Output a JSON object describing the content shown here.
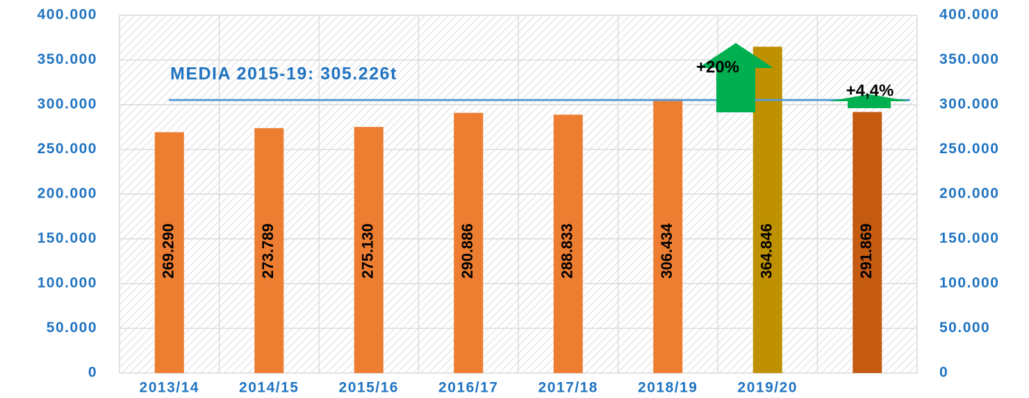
{
  "chart_data": {
    "type": "bar",
    "categories": [
      "2013/14",
      "2014/15",
      "2015/16",
      "2016/17",
      "2017/18",
      "2018/19",
      "2019/20",
      null
    ],
    "values": [
      269290,
      273789,
      275130,
      290886,
      288833,
      306434,
      364846,
      291869
    ],
    "value_labels": [
      "269.290",
      "273.789",
      "275.130",
      "290.886",
      "288.833",
      "306.434",
      "364.846",
      "291.869"
    ],
    "colors": [
      "#ed7d31",
      "#ed7d31",
      "#ed7d31",
      "#ed7d31",
      "#ed7d31",
      "#ed7d31",
      "#bf9000",
      "#c55a11"
    ],
    "ylim": [
      0,
      400000
    ],
    "yticks": [
      0,
      {
        "value": 50000,
        "label": "50.000"
      },
      {
        "value": 100000,
        "label": "100.000"
      },
      {
        "value": 150000,
        "label": "150.000"
      },
      {
        "value": 200000,
        "label": "200.000"
      },
      {
        "value": 250000,
        "label": "250.000"
      },
      {
        "value": 300000,
        "label": "300.000"
      },
      {
        "value": 350000,
        "label": "350.000"
      },
      {
        "value": 400000,
        "label": "400.000"
      }
    ],
    "y2lim": [
      0,
      400000
    ],
    "y2ticks": [
      0,
      {
        "value": 50000,
        "label": "50.000"
      },
      {
        "value": 100000,
        "label": "100.000"
      },
      {
        "value": 150000,
        "label": "150.000"
      },
      {
        "value": 200000,
        "label": "200.000"
      },
      {
        "value": 250000,
        "label": "250.000"
      },
      {
        "value": 300000,
        "label": "300.000"
      },
      {
        "value": 350000,
        "label": "350.000"
      },
      {
        "value": 400000,
        "label": "400.000"
      }
    ],
    "grid": true,
    "mean_line": {
      "label": "MEDIA 2015-19: 305.226t",
      "value": 305226,
      "color": "#5b9bd5"
    },
    "annotations": [
      {
        "text": "+20%"
      },
      {
        "text": "+4,4%"
      }
    ]
  }
}
